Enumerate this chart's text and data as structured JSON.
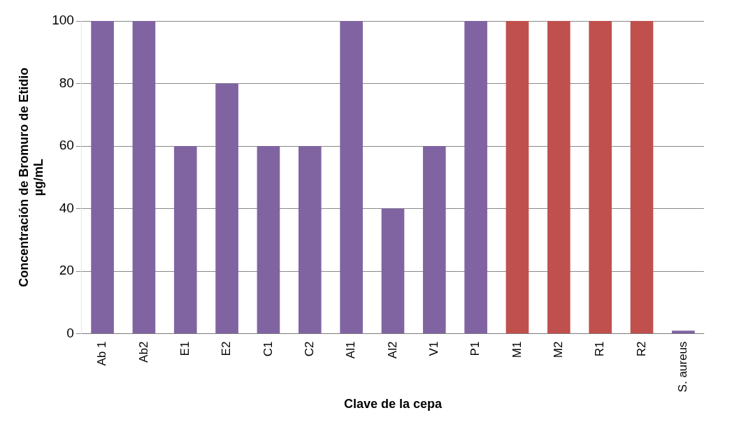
{
  "chart_data": {
    "type": "bar",
    "xlabel": "Clave de la cepa",
    "ylabel": "Concentración de Bromuro de Etidio\nµg/mL",
    "categories": [
      "Ab 1",
      "Ab2",
      "E1",
      "E2",
      "C1",
      "C2",
      "Al1",
      "Al2",
      "V1",
      "P1",
      "M1",
      "M2",
      "R1",
      "R2",
      "S. aureus"
    ],
    "values": [
      100,
      100,
      60,
      80,
      60,
      60,
      100,
      40,
      60,
      100,
      100,
      100,
      100,
      100,
      1
    ],
    "colors": [
      "#8064a2",
      "#8064a2",
      "#8064a2",
      "#8064a2",
      "#8064a2",
      "#8064a2",
      "#8064a2",
      "#8064a2",
      "#8064a2",
      "#8064a2",
      "#c0504d",
      "#c0504d",
      "#c0504d",
      "#c0504d",
      "#8064a2"
    ],
    "ylim": [
      0,
      100
    ],
    "yticks": [
      0,
      20,
      40,
      60,
      80,
      100
    ],
    "grid": "y",
    "legend": false
  }
}
